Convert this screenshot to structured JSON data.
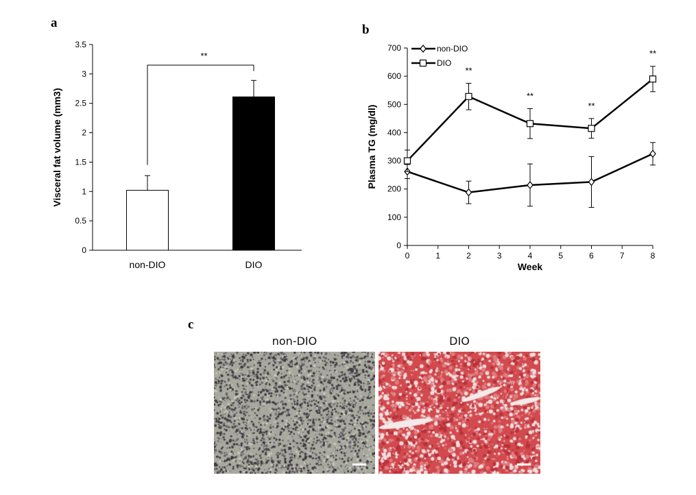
{
  "panels": {
    "a": "a",
    "b": "b",
    "c": "c"
  },
  "chart_data": [
    {
      "type": "bar",
      "panel": "a",
      "categories": [
        "non-DIO",
        "DIO"
      ],
      "values": [
        1.02,
        2.61
      ],
      "errors": [
        0.25,
        0.28
      ],
      "bar_colors": [
        "#ffffff",
        "#000000"
      ],
      "ylabel": "Visceral fat volume (mm3)",
      "ylim": [
        0,
        3.5
      ],
      "yticks": [
        "0",
        "0.5",
        "1",
        "1.5",
        "2",
        "2.5",
        "3",
        "3.5"
      ],
      "significance": "**",
      "grid": false
    },
    {
      "type": "line",
      "panel": "b",
      "x": [
        0,
        2,
        4,
        6,
        8
      ],
      "series": [
        {
          "name": "non-DIO",
          "marker": "diamond",
          "values": [
            262,
            188,
            214,
            225,
            325
          ],
          "errors": [
            25,
            40,
            75,
            90,
            40
          ]
        },
        {
          "name": "DIO",
          "marker": "square",
          "values": [
            300,
            528,
            432,
            415,
            590
          ],
          "errors": [
            38,
            47,
            53,
            35,
            45
          ]
        }
      ],
      "annotations": [
        {
          "x": 2,
          "text": "**"
        },
        {
          "x": 4,
          "text": "**"
        },
        {
          "x": 6,
          "text": "**"
        },
        {
          "x": 8,
          "text": "**"
        }
      ],
      "xlabel": "Week",
      "ylabel": "Plasma TG (mg/dl)",
      "xlim": [
        0,
        8
      ],
      "ylim": [
        0,
        700
      ],
      "xticks": [
        "0",
        "1",
        "2",
        "3",
        "4",
        "5",
        "6",
        "7",
        "8"
      ],
      "yticks": [
        "0",
        "100",
        "200",
        "300",
        "400",
        "500",
        "600",
        "700"
      ],
      "legend_position": "top-left",
      "grid": false
    }
  ],
  "micrographs": {
    "left_title": "non-DIO",
    "right_title": "DIO",
    "left_colors": {
      "base": "#a8a99e",
      "dots": "#3e3a42"
    },
    "right_colors": {
      "base": "#d24a4e",
      "light": "#f0dede"
    }
  }
}
